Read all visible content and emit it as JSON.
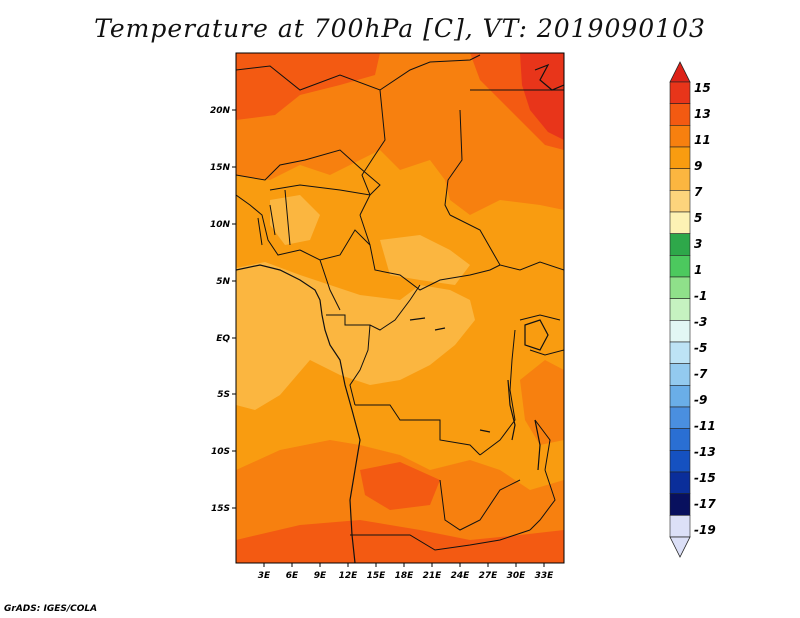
{
  "title": "Temperature at 700hPa [C], VT: 2019090103",
  "credit": "GrADS: IGES/COLA",
  "map": {
    "lat_labels": [
      "20N",
      "15N",
      "10N",
      "5N",
      "EQ",
      "5S",
      "10S",
      "15S"
    ],
    "lon_labels": [
      "3E",
      "6E",
      "9E",
      "12E",
      "15E",
      "18E",
      "21E",
      "24E",
      "27E",
      "30E",
      "33E"
    ]
  },
  "colorbar": {
    "labels": [
      "15",
      "13",
      "11",
      "9",
      "7",
      "5",
      "3",
      "1",
      "-1",
      "-3",
      "-5",
      "-7",
      "-9",
      "-11",
      "-13",
      "-15",
      "-17",
      "-19"
    ],
    "colors": [
      "#e8351a",
      "#f35a12",
      "#f7800f",
      "#f99c10",
      "#fbb640",
      "#fdd47c",
      "#fdf2b4",
      "#2ea84a",
      "#4cc95e",
      "#8fe08a",
      "#c6f2c0",
      "#e2f7f4",
      "#bde3f5",
      "#93caef",
      "#6aaee8",
      "#4a8fdf",
      "#2a6fd3",
      "#1551c0",
      "#0a2e9a",
      "#08105e",
      "#dce0f7"
    ],
    "top_triangle_color": "#dd2218",
    "bottom_triangle_color": "#dce0f7"
  },
  "field_colors": {
    "c7": "#fbb640",
    "c9": "#f99c10",
    "c11": "#f7800f",
    "c13": "#f35a12",
    "c15": "#e8351a"
  }
}
